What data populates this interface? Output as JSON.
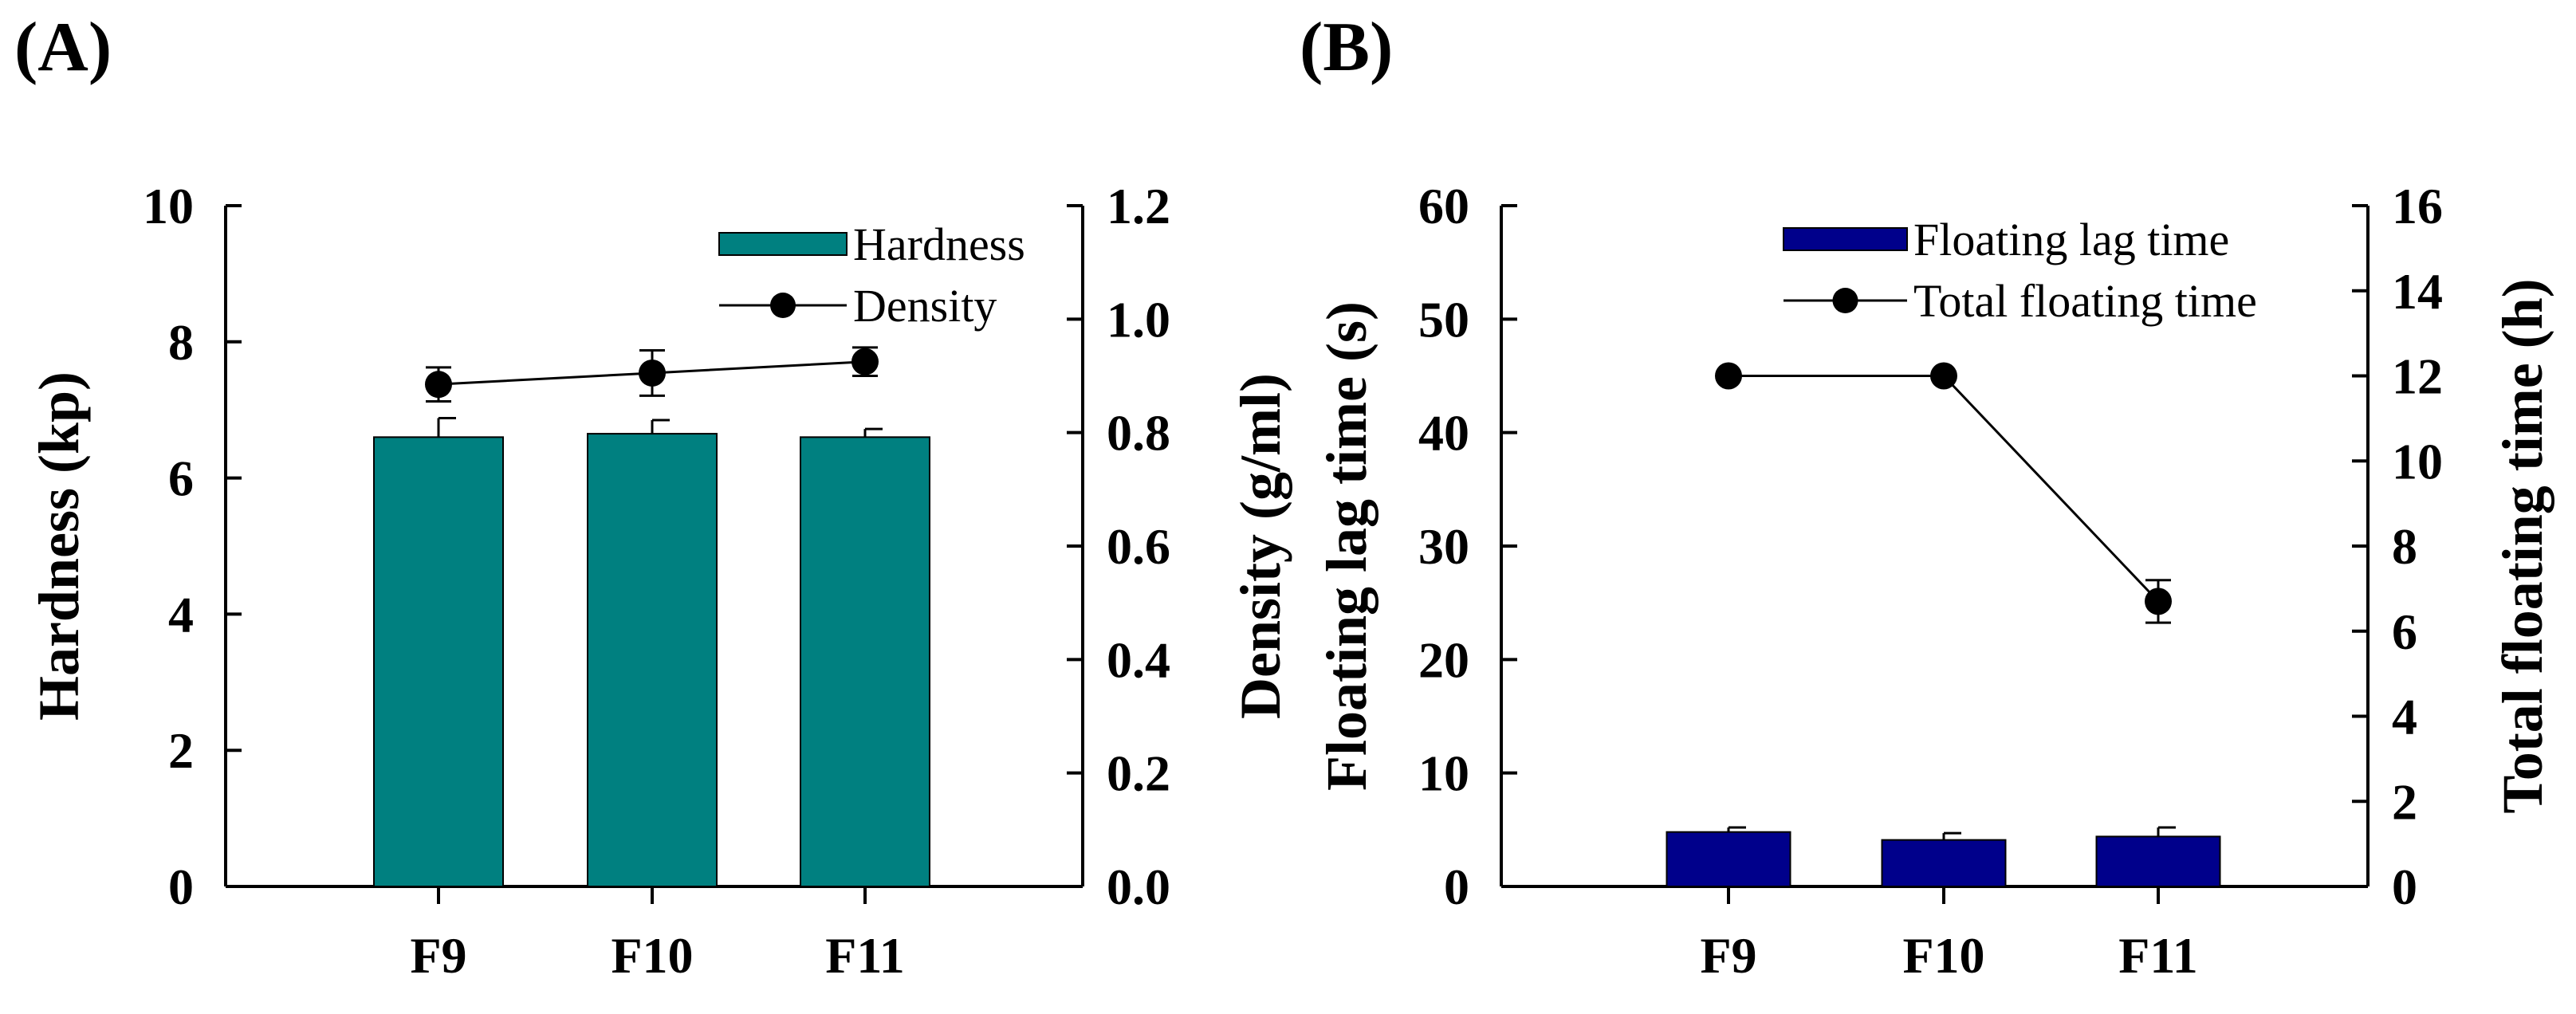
{
  "chart_data": [
    {
      "panel_label": "(A)",
      "type": "bar",
      "categories": [
        "F9",
        "F10",
        "F11"
      ],
      "colors": {
        "bar": "#008080",
        "line": "#000000"
      },
      "y_left": {
        "label": "Hardness (kp)",
        "lim": [
          0,
          10
        ],
        "ticks": [
          "0",
          "2",
          "4",
          "6",
          "8",
          "10"
        ],
        "tick_values": [
          0,
          2,
          4,
          6,
          8,
          10
        ]
      },
      "y_right": {
        "label": "Density (g/ml)",
        "lim": [
          0,
          1.2
        ],
        "ticks": [
          "0.0",
          "0.2",
          "0.4",
          "0.6",
          "0.8",
          "1.0",
          "1.2"
        ],
        "tick_values": [
          0,
          0.2,
          0.4,
          0.6,
          0.8,
          1.0,
          1.2
        ]
      },
      "series": [
        {
          "name": "Hardness",
          "type": "bar",
          "axis": "left",
          "values": [
            6.6,
            6.65,
            6.6
          ],
          "errors": [
            0.28,
            0.2,
            0.12
          ]
        },
        {
          "name": "Density",
          "type": "line",
          "axis": "right",
          "values": [
            0.885,
            0.905,
            0.925
          ],
          "errors": [
            0.03,
            0.04,
            0.025
          ]
        }
      ],
      "legend": {
        "position": "top-right",
        "entries": [
          "Hardness",
          "Density"
        ]
      }
    },
    {
      "panel_label": "(B)",
      "type": "bar",
      "categories": [
        "F9",
        "F10",
        "F11"
      ],
      "colors": {
        "bar": "#00008B",
        "line": "#000000"
      },
      "y_left": {
        "label": "Floating lag time (s)",
        "lim": [
          0,
          60
        ],
        "ticks": [
          "0",
          "10",
          "20",
          "30",
          "40",
          "50",
          "60"
        ],
        "tick_values": [
          0,
          10,
          20,
          30,
          40,
          50,
          60
        ]
      },
      "y_right": {
        "label": "Total floating time (h)",
        "lim": [
          0,
          16
        ],
        "ticks": [
          "0",
          "2",
          "4",
          "6",
          "8",
          "10",
          "12",
          "14",
          "16"
        ],
        "tick_values": [
          0,
          2,
          4,
          6,
          8,
          10,
          12,
          14,
          16
        ]
      },
      "series": [
        {
          "name": "Floating lag time",
          "type": "bar",
          "axis": "left",
          "values": [
            4.8,
            4.1,
            4.4
          ],
          "errors": [
            0.4,
            0.6,
            0.8
          ]
        },
        {
          "name": "Total floating time",
          "type": "line",
          "axis": "right",
          "values": [
            12,
            12,
            6.7
          ],
          "errors": [
            0,
            0,
            0.5
          ]
        }
      ],
      "legend": {
        "position": "top-right",
        "entries": [
          "Floating lag time",
          "Total floating time"
        ]
      }
    }
  ]
}
